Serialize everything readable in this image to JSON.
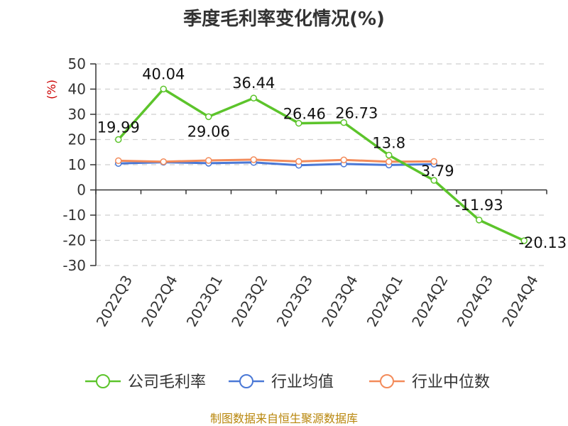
{
  "chart_data": {
    "type": "line",
    "title": "季度毛利率变化情况(%)",
    "ylabel": "(%)",
    "ylim": [
      -30,
      50
    ],
    "yticks": [
      50,
      40,
      30,
      20,
      10,
      0,
      -10,
      -20,
      -30
    ],
    "categories": [
      "2022Q3",
      "2022Q4",
      "2023Q1",
      "2023Q2",
      "2023Q3",
      "2023Q4",
      "2024Q1",
      "2024Q2",
      "2024Q3",
      "2024Q4"
    ],
    "grid": true,
    "legend_position": "bottom",
    "series": [
      {
        "name": "公司毛利率",
        "color": "#5cc42b",
        "values": [
          19.99,
          40.04,
          29.06,
          36.44,
          26.46,
          26.73,
          13.8,
          3.79,
          -11.93,
          -20.13
        ],
        "labels": [
          "19.99",
          "40.04",
          "29.06",
          "36.44",
          "26.46",
          "26.73",
          "13.8",
          "3.79",
          "-11.93",
          "-20.13"
        ]
      },
      {
        "name": "行业均值",
        "color": "#4a78d6",
        "values": [
          10.5,
          11.0,
          10.6,
          10.9,
          9.8,
          10.3,
          9.9,
          10.2,
          null,
          null
        ]
      },
      {
        "name": "行业中位数",
        "color": "#f38b5a",
        "values": [
          11.6,
          11.2,
          11.7,
          12.0,
          11.3,
          11.9,
          11.2,
          11.3,
          null,
          null
        ]
      }
    ]
  },
  "source": "制图数据来自恒生聚源数据库"
}
